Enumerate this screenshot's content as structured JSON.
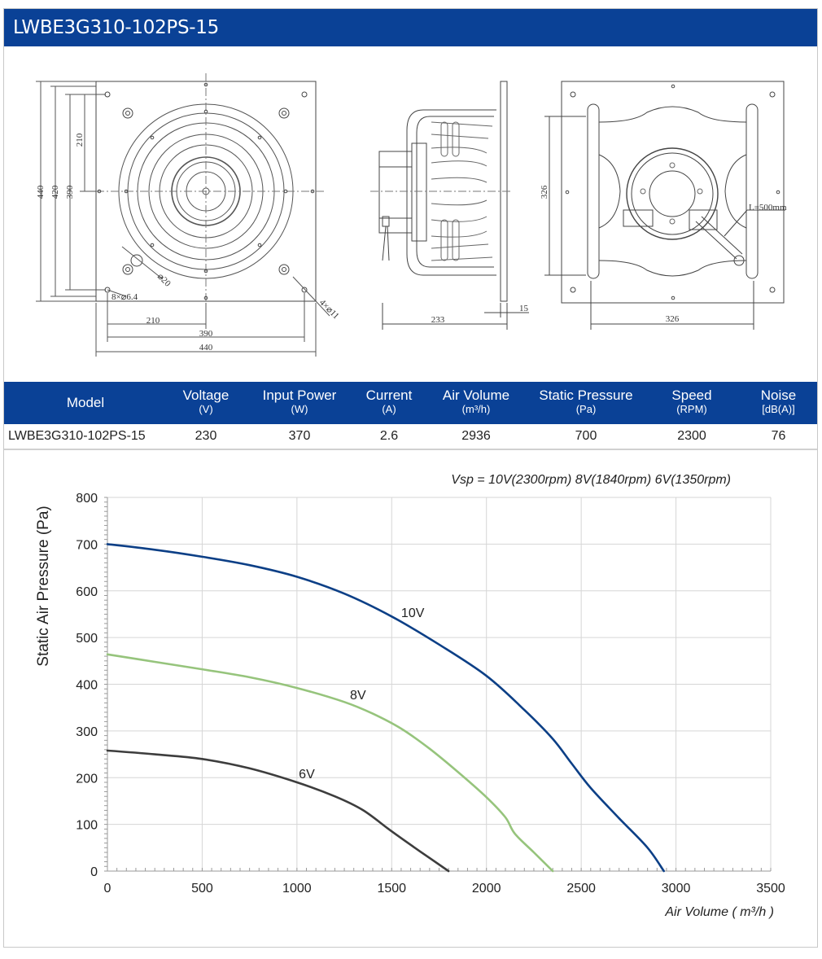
{
  "title": "LWBE3G310-102PS-15",
  "drawings": {
    "front": {
      "dims": [
        "440",
        "420",
        "390",
        "210",
        "210",
        "390",
        "440"
      ],
      "notes": [
        "8×⌀6.4",
        "⌀20",
        "4×⌀11"
      ]
    },
    "side": {
      "dims": [
        "233",
        "15"
      ]
    },
    "rear": {
      "dims": [
        "326",
        "326"
      ],
      "notes": [
        "L=500mm"
      ]
    }
  },
  "specs": {
    "headers": [
      {
        "label": "Model",
        "unit": ""
      },
      {
        "label": "Voltage",
        "unit": "(V)"
      },
      {
        "label": "Input Power",
        "unit": "(W)"
      },
      {
        "label": "Current",
        "unit": "(A)"
      },
      {
        "label": "Air Volume",
        "unit": "(m³/h)"
      },
      {
        "label": "Static Pressure",
        "unit": "(Pa)"
      },
      {
        "label": "Speed",
        "unit": "(RPM)"
      },
      {
        "label": "Noise",
        "unit": "[dB(A)]"
      }
    ],
    "row": [
      "LWBE3G310-102PS-15",
      "230",
      "370",
      "2.6",
      "2936",
      "700",
      "2300",
      "76"
    ]
  },
  "chart_data": {
    "type": "line",
    "title": "",
    "annotation": "Vsp = 10V(2300rpm)  8V(1840rpm)   6V(1350rpm)",
    "xlabel": "Air Volume ( m³/h )",
    "ylabel": "Static Air Pressure  (Pa)",
    "xlim": [
      0,
      3500
    ],
    "ylim": [
      0,
      800
    ],
    "xticks": [
      "0",
      "500",
      "1000",
      "1500",
      "2000",
      "2500",
      "3000",
      "3500"
    ],
    "yticks": [
      "0",
      "100",
      "200",
      "300",
      "400",
      "500",
      "600",
      "700",
      "800"
    ],
    "grid": true,
    "series": [
      {
        "name": "10V",
        "color": "#0c3f86",
        "points": [
          [
            0,
            700
          ],
          [
            250,
            688
          ],
          [
            500,
            673
          ],
          [
            750,
            655
          ],
          [
            1000,
            630
          ],
          [
            1250,
            594
          ],
          [
            1500,
            545
          ],
          [
            1750,
            485
          ],
          [
            2000,
            418
          ],
          [
            2200,
            345
          ],
          [
            2350,
            283
          ],
          [
            2450,
            230
          ],
          [
            2550,
            178
          ],
          [
            2700,
            113
          ],
          [
            2850,
            50
          ],
          [
            2936,
            0
          ]
        ]
      },
      {
        "name": "8V",
        "color": "#96c47c",
        "points": [
          [
            0,
            464
          ],
          [
            250,
            448
          ],
          [
            500,
            432
          ],
          [
            750,
            415
          ],
          [
            1000,
            392
          ],
          [
            1250,
            362
          ],
          [
            1400,
            337
          ],
          [
            1550,
            305
          ],
          [
            1700,
            262
          ],
          [
            1850,
            212
          ],
          [
            2000,
            158
          ],
          [
            2100,
            115
          ],
          [
            2150,
            80
          ],
          [
            2250,
            40
          ],
          [
            2350,
            0
          ]
        ]
      },
      {
        "name": "6V",
        "color": "#3d3d3d",
        "points": [
          [
            0,
            258
          ],
          [
            250,
            250
          ],
          [
            500,
            240
          ],
          [
            750,
            220
          ],
          [
            1000,
            190
          ],
          [
            1200,
            160
          ],
          [
            1350,
            130
          ],
          [
            1500,
            85
          ],
          [
            1650,
            42
          ],
          [
            1800,
            0
          ]
        ]
      }
    ]
  }
}
